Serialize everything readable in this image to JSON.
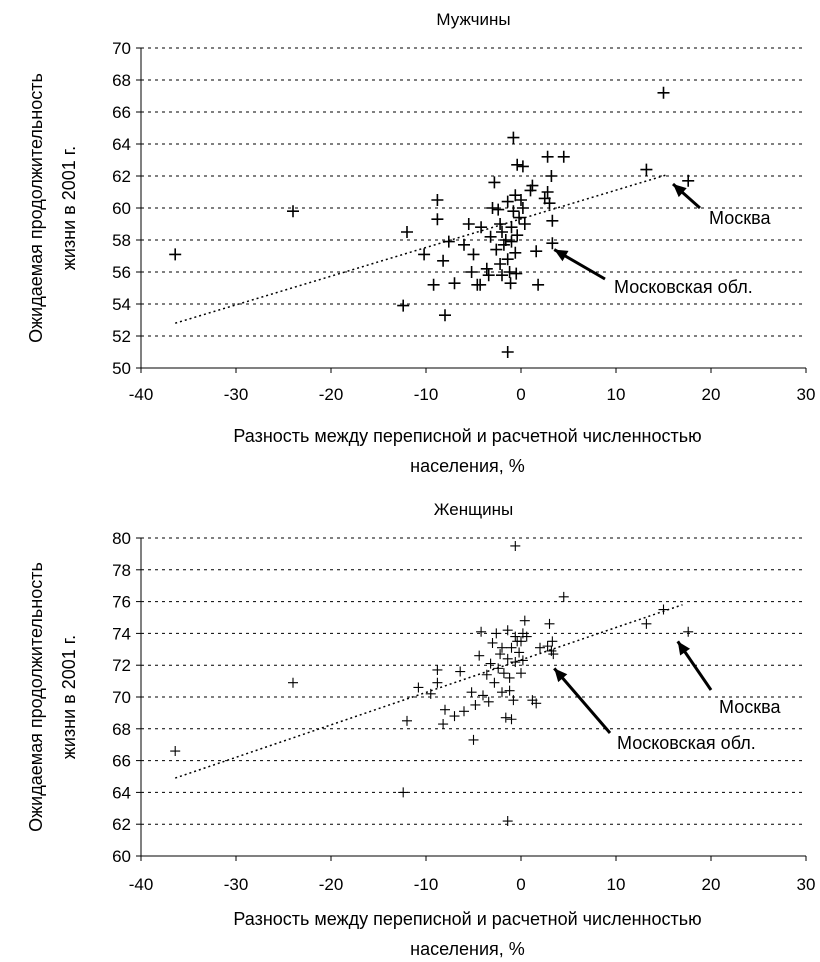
{
  "chart_data": [
    {
      "type": "scatter",
      "title": "Мужчины",
      "xlabel": "Разность между переписной и расчетной численностью населения, %",
      "ylabel": "Ожидаемая продолжительность жизни в 2001 г.",
      "xlim": [
        -40,
        30
      ],
      "ylim": [
        50,
        70
      ],
      "x_ticks": [
        "-40",
        "-30",
        "-20",
        "-10",
        "0",
        "10",
        "20",
        "30"
      ],
      "y_ticks": [
        "50",
        "52",
        "54",
        "56",
        "58",
        "60",
        "62",
        "64",
        "66",
        "68",
        "70"
      ],
      "grid": "horizontal dashed",
      "marker": "+",
      "points": [
        [
          -36.4,
          57.1
        ],
        [
          -24.0,
          59.8
        ],
        [
          -12.4,
          53.9
        ],
        [
          -12.0,
          58.5
        ],
        [
          -10.2,
          57.1
        ],
        [
          -9.2,
          55.2
        ],
        [
          -8.8,
          60.5
        ],
        [
          -8.8,
          59.3
        ],
        [
          -8.2,
          56.7
        ],
        [
          -8.0,
          53.3
        ],
        [
          -7.6,
          57.9
        ],
        [
          -7.0,
          55.3
        ],
        [
          -6.0,
          57.7
        ],
        [
          -5.5,
          59.0
        ],
        [
          -5.2,
          56.0
        ],
        [
          -5.0,
          57.1
        ],
        [
          -4.6,
          55.2
        ],
        [
          -4.3,
          55.2
        ],
        [
          -4.2,
          58.8
        ],
        [
          -3.6,
          56.2
        ],
        [
          -3.4,
          55.8
        ],
        [
          -3.2,
          58.2
        ],
        [
          -3.0,
          60.0
        ],
        [
          -2.8,
          61.6
        ],
        [
          -2.6,
          57.4
        ],
        [
          -2.4,
          59.9
        ],
        [
          -2.2,
          56.5
        ],
        [
          -2.2,
          59.0
        ],
        [
          -2.0,
          58.5
        ],
        [
          -2.0,
          55.8
        ],
        [
          -1.8,
          57.7
        ],
        [
          -1.6,
          58.0
        ],
        [
          -1.4,
          60.4
        ],
        [
          -1.4,
          56.8
        ],
        [
          -1.2,
          56.0
        ],
        [
          -1.1,
          55.3
        ],
        [
          -1.0,
          58.8
        ],
        [
          -1.0,
          57.9
        ],
        [
          -0.8,
          59.8
        ],
        [
          -0.8,
          64.4
        ],
        [
          -0.6,
          60.8
        ],
        [
          -0.6,
          57.2
        ],
        [
          -0.5,
          55.9
        ],
        [
          -0.4,
          62.7
        ],
        [
          -0.4,
          58.3
        ],
        [
          -0.2,
          59.4
        ],
        [
          0.0,
          60.5
        ],
        [
          0.2,
          60.0
        ],
        [
          0.2,
          62.6
        ],
        [
          0.4,
          59.0
        ],
        [
          1.0,
          61.1
        ],
        [
          1.2,
          61.4
        ],
        [
          1.6,
          57.3
        ],
        [
          1.8,
          55.2
        ],
        [
          2.5,
          60.6
        ],
        [
          2.8,
          63.2
        ],
        [
          2.8,
          61.0
        ],
        [
          3.0,
          60.3
        ],
        [
          3.2,
          62.0
        ],
        [
          3.3,
          59.2
        ],
        [
          3.3,
          57.8
        ],
        [
          4.5,
          63.2
        ],
        [
          13.2,
          62.4
        ],
        [
          15.0,
          67.2
        ],
        [
          17.6,
          61.7
        ],
        [
          -1.4,
          51.0
        ]
      ],
      "trendline": {
        "style": "dotted",
        "x": [
          -36.4,
          15.5
        ],
        "y": [
          52.8,
          62.1
        ]
      },
      "annotations": [
        {
          "label": "Москва",
          "arrow_to": [
            16.0,
            61.5
          ]
        },
        {
          "label": "Московская обл.",
          "arrow_to": [
            3.5,
            57.4
          ]
        }
      ]
    },
    {
      "type": "scatter",
      "title": "Женщины",
      "xlabel": "Разность между переписной и расчетной численностью населения, %",
      "ylabel": "Ожидаемая продолжительность жизни в 2001 г.",
      "xlim": [
        -40,
        30
      ],
      "ylim": [
        60,
        80
      ],
      "x_ticks": [
        "-40",
        "-30",
        "-20",
        "-10",
        "0",
        "10",
        "20",
        "30"
      ],
      "y_ticks": [
        "60",
        "62",
        "64",
        "66",
        "68",
        "70",
        "72",
        "74",
        "76",
        "78",
        "80"
      ],
      "grid": "horizontal dashed",
      "marker": "+",
      "points": [
        [
          -36.4,
          66.6
        ],
        [
          -24.0,
          70.9
        ],
        [
          -12.4,
          64.0
        ],
        [
          -12.0,
          68.5
        ],
        [
          -10.8,
          70.6
        ],
        [
          -9.5,
          70.2
        ],
        [
          -8.8,
          71.7
        ],
        [
          -8.8,
          70.9
        ],
        [
          -8.2,
          68.3
        ],
        [
          -8.0,
          69.2
        ],
        [
          -7.0,
          68.8
        ],
        [
          -6.4,
          71.6
        ],
        [
          -6.0,
          69.1
        ],
        [
          -5.2,
          70.3
        ],
        [
          -5.0,
          67.3
        ],
        [
          -4.8,
          69.5
        ],
        [
          -4.4,
          72.6
        ],
        [
          -4.2,
          74.1
        ],
        [
          -4.0,
          70.1
        ],
        [
          -3.6,
          71.4
        ],
        [
          -3.4,
          69.7
        ],
        [
          -3.2,
          72.1
        ],
        [
          -3.0,
          73.4
        ],
        [
          -2.8,
          70.9
        ],
        [
          -2.6,
          74.0
        ],
        [
          -2.4,
          71.8
        ],
        [
          -2.2,
          72.7
        ],
        [
          -2.0,
          70.3
        ],
        [
          -2.0,
          73.1
        ],
        [
          -1.8,
          71.5
        ],
        [
          -1.6,
          68.7
        ],
        [
          -1.4,
          74.2
        ],
        [
          -1.4,
          72.4
        ],
        [
          -1.2,
          71.2
        ],
        [
          -1.2,
          70.4
        ],
        [
          -1.0,
          68.6
        ],
        [
          -1.0,
          73.1
        ],
        [
          -0.8,
          69.8
        ],
        [
          -0.6,
          73.8
        ],
        [
          -0.6,
          72.2
        ],
        [
          -0.4,
          73.5
        ],
        [
          -0.2,
          72.8
        ],
        [
          0.0,
          71.5
        ],
        [
          0.0,
          73.5
        ],
        [
          0.2,
          72.3
        ],
        [
          0.2,
          74.0
        ],
        [
          0.4,
          74.8
        ],
        [
          0.6,
          73.8
        ],
        [
          1.2,
          69.8
        ],
        [
          1.6,
          69.6
        ],
        [
          2.0,
          73.1
        ],
        [
          2.8,
          73.2
        ],
        [
          3.0,
          74.6
        ],
        [
          3.2,
          72.9
        ],
        [
          3.3,
          73.5
        ],
        [
          3.4,
          72.7
        ],
        [
          4.5,
          76.3
        ],
        [
          13.2,
          74.6
        ],
        [
          15.0,
          75.5
        ],
        [
          17.6,
          74.1
        ],
        [
          -1.4,
          62.2
        ],
        [
          -0.6,
          79.5
        ]
      ],
      "trendline": {
        "style": "dotted",
        "x": [
          -36.4,
          17.0
        ],
        "y": [
          64.9,
          75.8
        ]
      },
      "annotations": [
        {
          "label": "Москва",
          "arrow_to": [
            16.5,
            73.5
          ]
        },
        {
          "label": "Московская обл.",
          "arrow_to": [
            3.5,
            71.8
          ]
        }
      ]
    }
  ]
}
